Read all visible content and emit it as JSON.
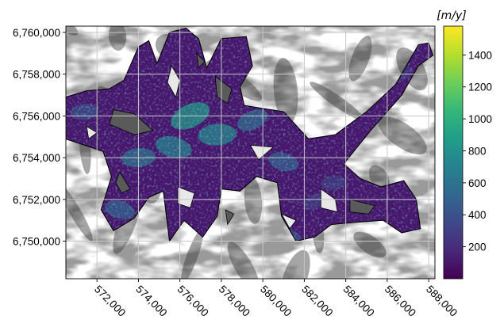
{
  "chart_data": {
    "type": "heatmap",
    "title": "",
    "xlabel": "",
    "ylabel": "",
    "x_ticks": [
      572000,
      574000,
      576000,
      578000,
      580000,
      582000,
      584000,
      586000,
      588000
    ],
    "x_tick_labels": [
      "572,000",
      "574,000",
      "576,000",
      "578,000",
      "580,000",
      "582,000",
      "584,000",
      "586,000",
      "588,000"
    ],
    "y_ticks": [
      6750000,
      6752000,
      6754000,
      6756000,
      6758000,
      6760000
    ],
    "y_tick_labels": [
      "6,750,000",
      "6,752,000",
      "6,754,000",
      "6,756,000",
      "6,758,000",
      "6,760,000"
    ],
    "xlim": [
      570500,
      588300
    ],
    "ylim": [
      6748200,
      6760300
    ],
    "grid": true,
    "background": "grayscale hillshade",
    "colormap": "viridis",
    "colorbar": {
      "unit_label": "[m/y]",
      "range": [
        0,
        1580
      ],
      "ticks": [
        200,
        400,
        600,
        800,
        1000,
        1200,
        1400
      ],
      "tick_labels": [
        "200",
        "400",
        "600",
        "800",
        "1000",
        "1200",
        "1400"
      ],
      "colors": [
        "#440154",
        "#482878",
        "#3e4989",
        "#31688e",
        "#26828e",
        "#1f9e89",
        "#35b779",
        "#6ece58",
        "#b5de2b",
        "#fde725"
      ]
    },
    "glacier_outline": [
      [
        570500,
        6756900
      ],
      [
        571500,
        6757200
      ],
      [
        572600,
        6757300
      ],
      [
        573300,
        6757700
      ],
      [
        574000,
        6759300
      ],
      [
        574500,
        6759600
      ],
      [
        574900,
        6758500
      ],
      [
        575500,
        6760000
      ],
      [
        576300,
        6760200
      ],
      [
        576900,
        6759700
      ],
      [
        577300,
        6758300
      ],
      [
        578000,
        6759700
      ],
      [
        579200,
        6759800
      ],
      [
        579500,
        6758400
      ],
      [
        578900,
        6757400
      ],
      [
        579100,
        6756500
      ],
      [
        581000,
        6756200
      ],
      [
        582200,
        6754900
      ],
      [
        583500,
        6755100
      ],
      [
        585000,
        6756200
      ],
      [
        586400,
        6757500
      ],
      [
        587500,
        6759400
      ],
      [
        588000,
        6759500
      ],
      [
        588200,
        6758900
      ],
      [
        587500,
        6758400
      ],
      [
        586700,
        6757000
      ],
      [
        585200,
        6755300
      ],
      [
        583900,
        6753700
      ],
      [
        584700,
        6753000
      ],
      [
        585700,
        6752600
      ],
      [
        586800,
        6752900
      ],
      [
        587400,
        6752000
      ],
      [
        587600,
        6750600
      ],
      [
        586700,
        6750400
      ],
      [
        585800,
        6751000
      ],
      [
        584400,
        6750900
      ],
      [
        583300,
        6750800
      ],
      [
        582500,
        6750200
      ],
      [
        581600,
        6750000
      ],
      [
        580900,
        6751200
      ],
      [
        580700,
        6752800
      ],
      [
        579700,
        6753100
      ],
      [
        578900,
        6752400
      ],
      [
        578000,
        6752500
      ],
      [
        577800,
        6751200
      ],
      [
        577100,
        6750200
      ],
      [
        576200,
        6751000
      ],
      [
        575500,
        6750000
      ],
      [
        575200,
        6752400
      ],
      [
        574500,
        6752100
      ],
      [
        573800,
        6751100
      ],
      [
        572800,
        6750500
      ],
      [
        572200,
        6751500
      ],
      [
        572700,
        6753100
      ],
      [
        572300,
        6754300
      ],
      [
        570500,
        6754900
      ]
    ],
    "fast_zones": [
      {
        "x": 576500,
        "y": 6756000,
        "value": 850
      },
      {
        "x": 577800,
        "y": 6755100,
        "value": 750
      },
      {
        "x": 575700,
        "y": 6754500,
        "value": 700
      },
      {
        "x": 579500,
        "y": 6755800,
        "value": 550
      },
      {
        "x": 574000,
        "y": 6754000,
        "value": 600
      },
      {
        "x": 573100,
        "y": 6751500,
        "value": 500
      },
      {
        "x": 574600,
        "y": 6750800,
        "value": 450
      },
      {
        "x": 571400,
        "y": 6756200,
        "value": 400
      },
      {
        "x": 581000,
        "y": 6753800,
        "value": 500
      },
      {
        "x": 582500,
        "y": 6751900,
        "value": 300
      },
      {
        "x": 583400,
        "y": 6752800,
        "value": 300
      },
      {
        "x": 581200,
        "y": 6750200,
        "value": 400
      },
      {
        "x": 586700,
        "y": 6758000,
        "value": 250
      }
    ],
    "ice_free_patches": [
      [
        [
          572800,
          6756300
        ],
        [
          573800,
          6756100
        ],
        [
          574700,
          6755300
        ],
        [
          573800,
          6755100
        ],
        [
          572600,
          6755600
        ]
      ],
      [
        [
          575600,
          6758400
        ],
        [
          576000,
          6757700
        ],
        [
          575800,
          6756900
        ],
        [
          575400,
          6757600
        ]
      ],
      [
        [
          577700,
          6757900
        ],
        [
          578500,
          6757300
        ],
        [
          578300,
          6756600
        ],
        [
          577800,
          6756900
        ]
      ],
      [
        [
          579400,
          6754600
        ],
        [
          580500,
          6754500
        ],
        [
          579800,
          6753900
        ]
      ],
      [
        [
          573100,
          6753300
        ],
        [
          573600,
          6752500
        ],
        [
          573200,
          6752300
        ],
        [
          572900,
          6752800
        ]
      ],
      [
        [
          575900,
          6752600
        ],
        [
          576700,
          6752300
        ],
        [
          576500,
          6751600
        ],
        [
          575900,
          6751800
        ]
      ],
      [
        [
          578200,
          6751500
        ],
        [
          578600,
          6751300
        ],
        [
          578300,
          6750800
        ]
      ],
      [
        [
          582800,
          6752500
        ],
        [
          583500,
          6752000
        ],
        [
          583600,
          6751400
        ],
        [
          582800,
          6751600
        ]
      ],
      [
        [
          584200,
          6752000
        ],
        [
          585400,
          6751700
        ],
        [
          585100,
          6751300
        ],
        [
          584200,
          6751400
        ]
      ],
      [
        [
          580900,
          6751300
        ],
        [
          581600,
          6751000
        ],
        [
          581300,
          6750600
        ]
      ],
      [
        [
          576800,
          6759000
        ],
        [
          577200,
          6758600
        ],
        [
          576900,
          6758300
        ]
      ],
      [
        [
          571500,
          6755500
        ],
        [
          572000,
          6755200
        ],
        [
          571600,
          6754900
        ]
      ]
    ]
  }
}
